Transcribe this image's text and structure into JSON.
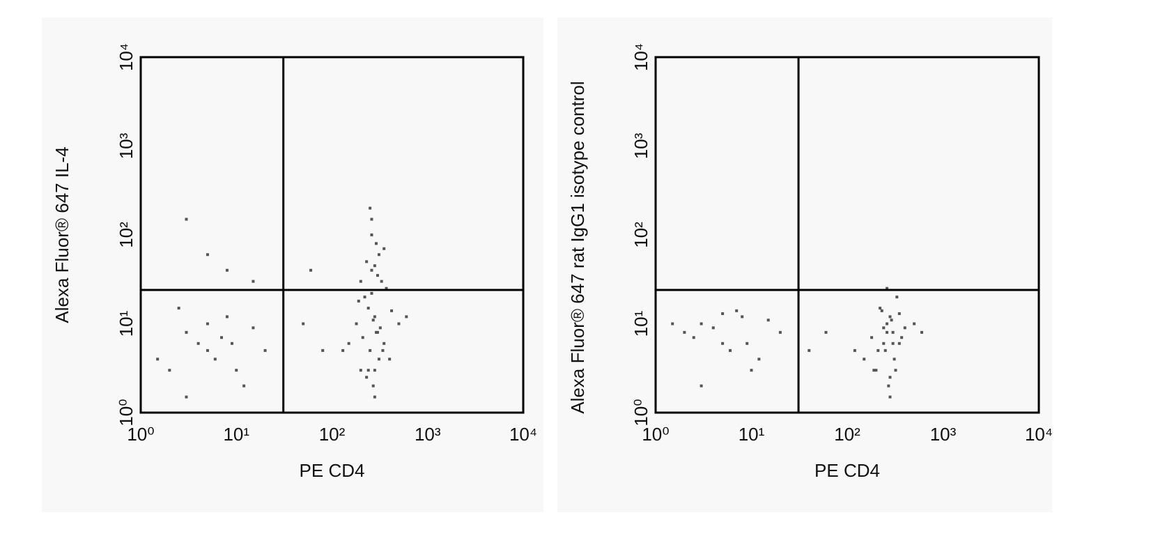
{
  "chart_data": [
    {
      "type": "scatter",
      "x_label": "PE CD4",
      "y_label": "Alexa Fluor® 647 IL-4",
      "color": "#555555",
      "log_x": true,
      "log_y": true,
      "xlim": [
        1,
        10000
      ],
      "ylim": [
        1,
        10000
      ],
      "xticks": [
        {
          "value": 1,
          "label": "10⁰"
        },
        {
          "value": 10,
          "label": "10¹"
        },
        {
          "value": 100,
          "label": "10²"
        },
        {
          "value": 1000,
          "label": "10³"
        },
        {
          "value": 10000,
          "label": "10⁴"
        }
      ],
      "yticks": [
        {
          "value": 1,
          "label": "10⁰"
        },
        {
          "value": 10,
          "label": "10¹"
        },
        {
          "value": 100,
          "label": "10²"
        },
        {
          "value": 1000,
          "label": "10³"
        },
        {
          "value": 10000,
          "label": "10⁴"
        }
      ],
      "gate": {
        "x": 31,
        "y": 24
      },
      "x": [
        250,
        300,
        200,
        280,
        350,
        220,
        260,
        310,
        180,
        400,
        270,
        240,
        330,
        290,
        210,
        260,
        320,
        230,
        370,
        280,
        150,
        500,
        260,
        300,
        240,
        190,
        350,
        280,
        270,
        310,
        230,
        420,
        260,
        290,
        200,
        340,
        250,
        600,
        130,
        280,
        2,
        3,
        5,
        8,
        12,
        4,
        6,
        15,
        2.5,
        7,
        10,
        20,
        3,
        5,
        9,
        1.5,
        5,
        8,
        3,
        15,
        50,
        60,
        80
      ],
      "values": [
        5,
        8,
        3,
        12,
        6,
        20,
        40,
        60,
        10,
        4,
        2,
        15,
        30,
        80,
        7,
        100,
        9,
        50,
        25,
        1.5,
        6,
        10,
        150,
        35,
        3,
        18,
        70,
        45,
        11,
        4,
        2.5,
        14,
        22,
        8,
        30,
        5,
        200,
        12,
        5,
        3,
        3,
        8,
        5,
        12,
        2,
        6,
        4,
        9,
        15,
        7,
        3,
        5,
        1.5,
        10,
        6,
        4,
        60,
        40,
        150,
        30,
        10,
        40,
        5
      ]
    },
    {
      "type": "scatter",
      "x_label": "PE CD4",
      "y_label": "Alexa Fluor® 647 rat IgG1 isotype control",
      "color": "#555555",
      "log_x": true,
      "log_y": true,
      "xlim": [
        1,
        10000
      ],
      "ylim": [
        1,
        10000
      ],
      "xticks": [
        {
          "value": 1,
          "label": "10⁰"
        },
        {
          "value": 10,
          "label": "10¹"
        },
        {
          "value": 100,
          "label": "10²"
        },
        {
          "value": 1000,
          "label": "10³"
        },
        {
          "value": 10000,
          "label": "10⁴"
        }
      ],
      "yticks": [
        {
          "value": 1,
          "label": "10⁰"
        },
        {
          "value": 10,
          "label": "10¹"
        },
        {
          "value": 100,
          "label": "10²"
        },
        {
          "value": 1000,
          "label": "10³"
        },
        {
          "value": 10000,
          "label": "10⁴"
        }
      ],
      "gate": {
        "x": 31,
        "y": 24
      },
      "x": [
        250,
        300,
        200,
        280,
        350,
        220,
        260,
        310,
        180,
        400,
        270,
        240,
        330,
        290,
        210,
        260,
        320,
        230,
        370,
        280,
        150,
        500,
        260,
        300,
        240,
        190,
        350,
        280,
        600,
        120,
        2,
        3,
        5,
        8,
        12,
        4,
        6,
        15,
        2.5,
        7,
        10,
        20,
        3,
        5,
        9,
        1.5,
        40,
        60
      ],
      "values": [
        5,
        8,
        3,
        12,
        6,
        15,
        10,
        4,
        7,
        9,
        2,
        6,
        20,
        11,
        5,
        8,
        3,
        14,
        7,
        2.5,
        4,
        10,
        25,
        6,
        9,
        3,
        13,
        1.5,
        8,
        5,
        8,
        10,
        6,
        12,
        4,
        9,
        5,
        11,
        7,
        14,
        3,
        8,
        2,
        13,
        6,
        10,
        5,
        8
      ]
    }
  ]
}
